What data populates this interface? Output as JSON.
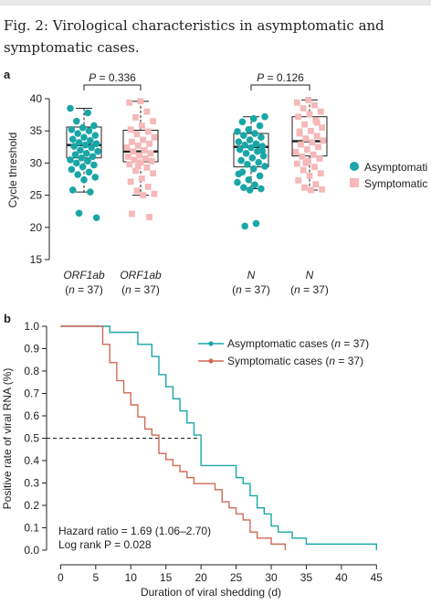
{
  "caption": "Fig. 2: Virological characteristics in asymptomatic and symptomatic cases.",
  "panels": {
    "a": "a",
    "b": "b"
  },
  "colors": {
    "asym": "#1aa6a6",
    "sym": "#f6b8b8",
    "sym_line": "#d06a55",
    "axis": "#222222"
  },
  "chart_data": [
    {
      "type": "box",
      "panel": "a",
      "ylabel": "Cycle threshold",
      "ylim": [
        15,
        40
      ],
      "yticks": [
        15,
        20,
        25,
        30,
        35,
        40
      ],
      "group_labels": [
        {
          "gene": "ORF1ab",
          "n": "(n = 37)"
        },
        {
          "gene": "ORF1ab",
          "n": "(n = 37)"
        },
        {
          "gene": "N",
          "n": "(n = 37)"
        },
        {
          "gene": "N",
          "n": "(n = 37)"
        }
      ],
      "legend": [
        "Asymptomati",
        "Symptomatic"
      ],
      "comparisons": [
        {
          "label": "P = 0.336",
          "groups": [
            0,
            1
          ]
        },
        {
          "label": "P = 0.126",
          "groups": [
            2,
            3
          ]
        }
      ],
      "boxes": [
        {
          "series": "asym",
          "whisker_low": 25.5,
          "q1": 30.8,
          "median": 32.8,
          "q3": 35.6,
          "whisker_high": 38.5,
          "points": [
            38.5,
            37.8,
            36.5,
            35.8,
            35.5,
            35.2,
            35.0,
            34.6,
            34.3,
            34.0,
            33.7,
            33.5,
            33.2,
            33.0,
            32.8,
            32.6,
            32.4,
            32.0,
            31.8,
            31.5,
            31.3,
            31.0,
            30.8,
            30.5,
            30.3,
            30.0,
            29.7,
            29.4,
            29.0,
            28.6,
            28.2,
            27.8,
            27.4,
            25.8,
            25.5,
            22.2,
            21.5
          ]
        },
        {
          "series": "sym",
          "whisker_low": 25.0,
          "q1": 30.2,
          "median": 31.8,
          "q3": 35.1,
          "whisker_high": 39.6,
          "points": [
            39.6,
            39.4,
            38.0,
            37.1,
            36.5,
            35.8,
            35.2,
            34.9,
            34.5,
            34.0,
            33.6,
            33.3,
            33.0,
            32.7,
            32.4,
            32.0,
            31.8,
            31.5,
            31.2,
            31.0,
            30.7,
            30.5,
            30.3,
            30.1,
            29.8,
            29.3,
            28.8,
            28.4,
            27.6,
            27.1,
            26.3,
            25.7,
            25.2,
            25.0,
            22.1,
            21.6,
            29.5
          ]
        },
        {
          "series": "asym",
          "whisker_low": 26.0,
          "q1": 29.4,
          "median": 32.5,
          "q3": 34.6,
          "whisker_high": 37.2,
          "points": [
            37.2,
            36.9,
            36.4,
            35.8,
            35.2,
            34.9,
            34.6,
            34.3,
            34.0,
            33.6,
            33.3,
            33.0,
            32.8,
            32.6,
            32.4,
            32.1,
            31.8,
            31.5,
            31.1,
            30.8,
            30.4,
            30.1,
            29.8,
            29.5,
            29.1,
            28.6,
            28.0,
            27.4,
            27.0,
            26.6,
            26.2,
            26.0,
            25.8,
            28.3,
            20.6,
            20.2,
            31.9
          ]
        },
        {
          "series": "sym",
          "whisker_low": 25.8,
          "q1": 31.1,
          "median": 33.4,
          "q3": 37.2,
          "whisker_high": 39.8,
          "points": [
            39.8,
            39.4,
            39.0,
            38.5,
            38.0,
            37.6,
            37.2,
            36.6,
            36.0,
            35.5,
            35.0,
            34.6,
            34.2,
            33.8,
            33.5,
            33.2,
            32.9,
            32.5,
            32.1,
            31.7,
            31.3,
            31.0,
            30.7,
            30.3,
            29.9,
            29.4,
            28.9,
            28.4,
            28.0,
            27.3,
            26.7,
            26.2,
            25.9,
            25.8,
            34.9,
            36.3,
            30.0
          ]
        }
      ]
    },
    {
      "type": "line",
      "panel": "b",
      "xlabel": "Duration of viral shedding (d)",
      "ylabel": "Positive rate of viral RNA (%)",
      "xlim": [
        -2,
        46
      ],
      "ylim": [
        0,
        1.0
      ],
      "xticks": [
        0,
        5,
        10,
        15,
        20,
        25,
        30,
        35,
        40,
        45
      ],
      "yticks": [
        0.0,
        0.1,
        0.2,
        0.3,
        0.4,
        0.5,
        0.6,
        0.7,
        0.8,
        0.9,
        1.0
      ],
      "reference_line": {
        "y": 0.5,
        "x_end": 19.5
      },
      "series": [
        {
          "name": "Asymptomatic cases (n = 37)",
          "color_key": "asym",
          "marker_x": 42,
          "x": [
            0,
            7,
            11,
            13,
            14,
            15,
            16,
            17,
            18,
            19,
            20,
            25,
            26,
            27,
            28,
            29,
            30,
            31,
            32,
            33,
            35,
            38,
            45
          ],
          "y": [
            1.0,
            0.973,
            0.919,
            0.865,
            0.784,
            0.73,
            0.676,
            0.622,
            0.568,
            0.514,
            0.378,
            0.324,
            0.297,
            0.243,
            0.189,
            0.162,
            0.108,
            0.081,
            0.081,
            0.054,
            0.027,
            0.027,
            0.0
          ]
        },
        {
          "name": "Symptomatic cases (n = 37)",
          "color_key": "sym_line",
          "marker_x": 39,
          "x": [
            0,
            6,
            7,
            8,
            9,
            10,
            11,
            12,
            13,
            14,
            15,
            16,
            17,
            18,
            19,
            22,
            23,
            24,
            25,
            26,
            27,
            28,
            30,
            31,
            32
          ],
          "y": [
            1.0,
            0.919,
            0.838,
            0.757,
            0.703,
            0.649,
            0.595,
            0.541,
            0.514,
            0.432,
            0.405,
            0.378,
            0.351,
            0.324,
            0.297,
            0.27,
            0.216,
            0.189,
            0.162,
            0.135,
            0.081,
            0.054,
            0.027,
            0.027,
            0.0
          ]
        }
      ],
      "annotations": [
        "Hazard ratio = 1.69 (1.06–2.70)",
        "Log rank P = 0.028"
      ]
    }
  ]
}
